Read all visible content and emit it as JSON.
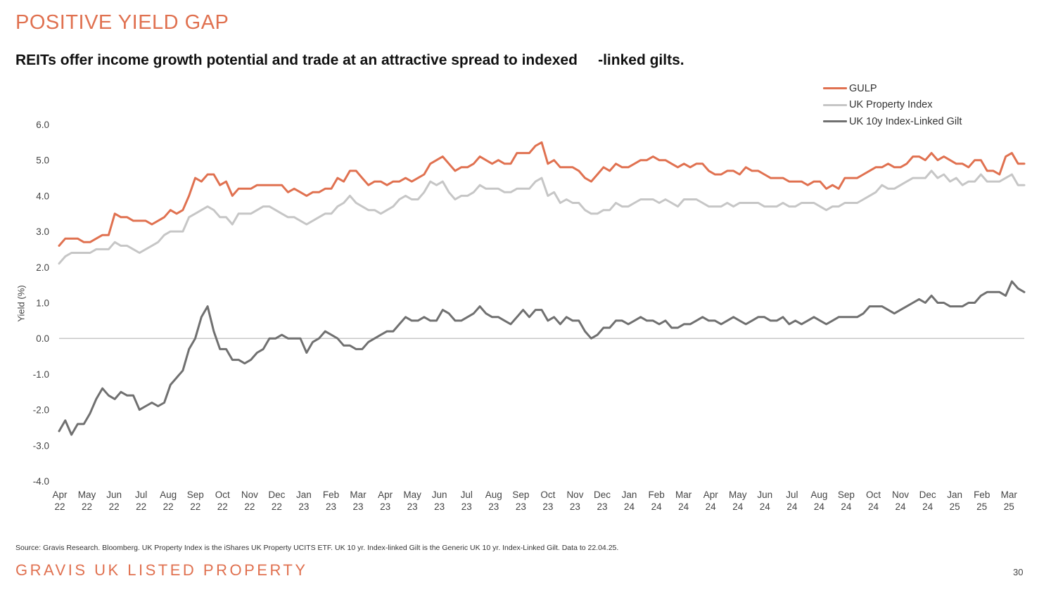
{
  "page": {
    "title": "POSITIVE YIELD GAP",
    "subtitle": "REITs offer income growth potential and trade at an attractive spread to indexed     -linked gilts.",
    "source": "Source: Gravis Research. Bloomberg. UK Property Index is the iShares UK Property UCITS ETF. UK 10 yr. Index-linked Gilt is the Generic UK 10 yr. Index-Linked Gilt. Data to 22.04.25.",
    "footer": "GRAVIS UK LISTED PROPERTY",
    "page_number": "30",
    "accent_color": "#e07150"
  },
  "chart_data": {
    "type": "line",
    "title": "",
    "xlabel": "",
    "ylabel": "Yield (%)",
    "ylim": [
      -4.0,
      6.0
    ],
    "yticks": [
      "6.0",
      "5.0",
      "4.0",
      "3.0",
      "2.0",
      "1.0",
      "0.0",
      "-1.0",
      "-2.0",
      "-3.0",
      "-4.0"
    ],
    "grid": false,
    "zero_line": true,
    "legend_position": "top-right",
    "x_ticks": [
      {
        "month": "Apr",
        "year": "22"
      },
      {
        "month": "May",
        "year": "22"
      },
      {
        "month": "Jun",
        "year": "22"
      },
      {
        "month": "Jul",
        "year": "22"
      },
      {
        "month": "Aug",
        "year": "22"
      },
      {
        "month": "Sep",
        "year": "22"
      },
      {
        "month": "Oct",
        "year": "22"
      },
      {
        "month": "Nov",
        "year": "22"
      },
      {
        "month": "Dec",
        "year": "22"
      },
      {
        "month": "Jan",
        "year": "23"
      },
      {
        "month": "Feb",
        "year": "23"
      },
      {
        "month": "Mar",
        "year": "23"
      },
      {
        "month": "Apr",
        "year": "23"
      },
      {
        "month": "May",
        "year": "23"
      },
      {
        "month": "Jun",
        "year": "23"
      },
      {
        "month": "Jul",
        "year": "23"
      },
      {
        "month": "Aug",
        "year": "23"
      },
      {
        "month": "Sep",
        "year": "23"
      },
      {
        "month": "Oct",
        "year": "23"
      },
      {
        "month": "Nov",
        "year": "23"
      },
      {
        "month": "Dec",
        "year": "23"
      },
      {
        "month": "Jan",
        "year": "24"
      },
      {
        "month": "Feb",
        "year": "24"
      },
      {
        "month": "Mar",
        "year": "24"
      },
      {
        "month": "Apr",
        "year": "24"
      },
      {
        "month": "May",
        "year": "24"
      },
      {
        "month": "Jun",
        "year": "24"
      },
      {
        "month": "Jul",
        "year": "24"
      },
      {
        "month": "Aug",
        "year": "24"
      },
      {
        "month": "Sep",
        "year": "24"
      },
      {
        "month": "Oct",
        "year": "24"
      },
      {
        "month": "Nov",
        "year": "24"
      },
      {
        "month": "Dec",
        "year": "24"
      },
      {
        "month": "Jan",
        "year": "25"
      },
      {
        "month": "Feb",
        "year": "25"
      },
      {
        "month": "Mar",
        "year": "25"
      }
    ],
    "x_range": [
      "Apr 22",
      "late Apr 25"
    ],
    "series": [
      {
        "name": "GULP",
        "color": "#e07150",
        "width": 3,
        "values": [
          2.6,
          2.8,
          2.8,
          2.8,
          2.7,
          2.7,
          2.8,
          2.9,
          2.9,
          3.5,
          3.4,
          3.4,
          3.3,
          3.3,
          3.3,
          3.2,
          3.3,
          3.4,
          3.6,
          3.5,
          3.6,
          4.0,
          4.5,
          4.4,
          4.6,
          4.6,
          4.3,
          4.4,
          4.0,
          4.2,
          4.2,
          4.2,
          4.3,
          4.3,
          4.3,
          4.3,
          4.3,
          4.1,
          4.2,
          4.1,
          4.0,
          4.1,
          4.1,
          4.2,
          4.2,
          4.5,
          4.4,
          4.7,
          4.7,
          4.5,
          4.3,
          4.4,
          4.4,
          4.3,
          4.4,
          4.4,
          4.5,
          4.4,
          4.5,
          4.6,
          4.9,
          5.0,
          5.1,
          4.9,
          4.7,
          4.8,
          4.8,
          4.9,
          5.1,
          5.0,
          4.9,
          5.0,
          4.9,
          4.9,
          5.2,
          5.2,
          5.2,
          5.4,
          5.5,
          4.9,
          5.0,
          4.8,
          4.8,
          4.8,
          4.7,
          4.5,
          4.4,
          4.6,
          4.8,
          4.7,
          4.9,
          4.8,
          4.8,
          4.9,
          5.0,
          5.0,
          5.1,
          5.0,
          5.0,
          4.9,
          4.8,
          4.9,
          4.8,
          4.9,
          4.9,
          4.7,
          4.6,
          4.6,
          4.7,
          4.7,
          4.6,
          4.8,
          4.7,
          4.7,
          4.6,
          4.5,
          4.5,
          4.5,
          4.4,
          4.4,
          4.4,
          4.3,
          4.4,
          4.4,
          4.2,
          4.3,
          4.2,
          4.5,
          4.5,
          4.5,
          4.6,
          4.7,
          4.8,
          4.8,
          4.9,
          4.8,
          4.8,
          4.9,
          5.1,
          5.1,
          5.0,
          5.2,
          5.0,
          5.1,
          5.0,
          4.9,
          4.9,
          4.8,
          5.0,
          5.0,
          4.7,
          4.7,
          4.6,
          5.1,
          5.2,
          4.9,
          4.9
        ]
      },
      {
        "name": "UK Property Index",
        "color": "#c6c6c6",
        "width": 3,
        "values": [
          2.1,
          2.3,
          2.4,
          2.4,
          2.4,
          2.4,
          2.5,
          2.5,
          2.5,
          2.7,
          2.6,
          2.6,
          2.5,
          2.4,
          2.5,
          2.6,
          2.7,
          2.9,
          3.0,
          3.0,
          3.0,
          3.4,
          3.5,
          3.6,
          3.7,
          3.6,
          3.4,
          3.4,
          3.2,
          3.5,
          3.5,
          3.5,
          3.6,
          3.7,
          3.7,
          3.6,
          3.5,
          3.4,
          3.4,
          3.3,
          3.2,
          3.3,
          3.4,
          3.5,
          3.5,
          3.7,
          3.8,
          4.0,
          3.8,
          3.7,
          3.6,
          3.6,
          3.5,
          3.6,
          3.7,
          3.9,
          4.0,
          3.9,
          3.9,
          4.1,
          4.4,
          4.3,
          4.4,
          4.1,
          3.9,
          4.0,
          4.0,
          4.1,
          4.3,
          4.2,
          4.2,
          4.2,
          4.1,
          4.1,
          4.2,
          4.2,
          4.2,
          4.4,
          4.5,
          4.0,
          4.1,
          3.8,
          3.9,
          3.8,
          3.8,
          3.6,
          3.5,
          3.5,
          3.6,
          3.6,
          3.8,
          3.7,
          3.7,
          3.8,
          3.9,
          3.9,
          3.9,
          3.8,
          3.9,
          3.8,
          3.7,
          3.9,
          3.9,
          3.9,
          3.8,
          3.7,
          3.7,
          3.7,
          3.8,
          3.7,
          3.8,
          3.8,
          3.8,
          3.8,
          3.7,
          3.7,
          3.7,
          3.8,
          3.7,
          3.7,
          3.8,
          3.8,
          3.8,
          3.7,
          3.6,
          3.7,
          3.7,
          3.8,
          3.8,
          3.8,
          3.9,
          4.0,
          4.1,
          4.3,
          4.2,
          4.2,
          4.3,
          4.4,
          4.5,
          4.5,
          4.5,
          4.7,
          4.5,
          4.6,
          4.4,
          4.5,
          4.3,
          4.4,
          4.4,
          4.6,
          4.4,
          4.4,
          4.4,
          4.5,
          4.6,
          4.3,
          4.3
        ]
      },
      {
        "name": "UK 10y Index-Linked Gilt",
        "color": "#707070",
        "width": 3,
        "values": [
          -2.6,
          -2.3,
          -2.7,
          -2.4,
          -2.4,
          -2.1,
          -1.7,
          -1.4,
          -1.6,
          -1.7,
          -1.5,
          -1.6,
          -1.6,
          -2.0,
          -1.9,
          -1.8,
          -1.9,
          -1.8,
          -1.3,
          -1.1,
          -0.9,
          -0.3,
          0.0,
          0.6,
          0.9,
          0.2,
          -0.3,
          -0.3,
          -0.6,
          -0.6,
          -0.7,
          -0.6,
          -0.4,
          -0.3,
          0.0,
          0.0,
          0.1,
          0.0,
          0.0,
          0.0,
          -0.4,
          -0.1,
          0.0,
          0.2,
          0.1,
          0.0,
          -0.2,
          -0.2,
          -0.3,
          -0.3,
          -0.1,
          0.0,
          0.1,
          0.2,
          0.2,
          0.4,
          0.6,
          0.5,
          0.5,
          0.6,
          0.5,
          0.5,
          0.8,
          0.7,
          0.5,
          0.5,
          0.6,
          0.7,
          0.9,
          0.7,
          0.6,
          0.6,
          0.5,
          0.4,
          0.6,
          0.8,
          0.6,
          0.8,
          0.8,
          0.5,
          0.6,
          0.4,
          0.6,
          0.5,
          0.5,
          0.2,
          0.0,
          0.1,
          0.3,
          0.3,
          0.5,
          0.5,
          0.4,
          0.5,
          0.6,
          0.5,
          0.5,
          0.4,
          0.5,
          0.3,
          0.3,
          0.4,
          0.4,
          0.5,
          0.6,
          0.5,
          0.5,
          0.4,
          0.5,
          0.6,
          0.5,
          0.4,
          0.5,
          0.6,
          0.6,
          0.5,
          0.5,
          0.6,
          0.4,
          0.5,
          0.4,
          0.5,
          0.6,
          0.5,
          0.4,
          0.5,
          0.6,
          0.6,
          0.6,
          0.6,
          0.7,
          0.9,
          0.9,
          0.9,
          0.8,
          0.7,
          0.8,
          0.9,
          1.0,
          1.1,
          1.0,
          1.2,
          1.0,
          1.0,
          0.9,
          0.9,
          0.9,
          1.0,
          1.0,
          1.2,
          1.3,
          1.3,
          1.3,
          1.2,
          1.6,
          1.4,
          1.3
        ]
      }
    ]
  }
}
